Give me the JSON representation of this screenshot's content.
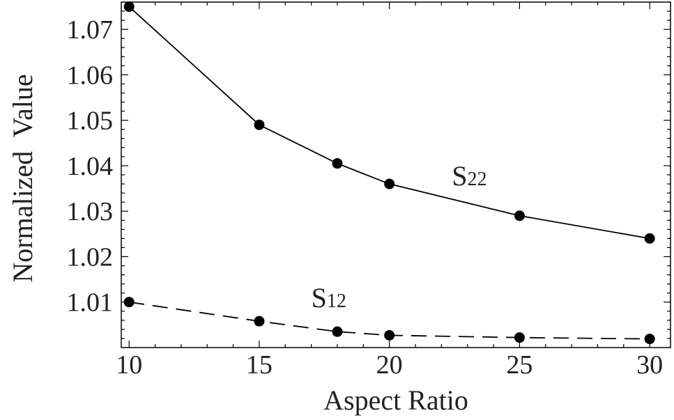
{
  "chart_data": {
    "type": "line",
    "xlabel": "Aspect Ratio",
    "ylabel": "Normalized  Value",
    "xlim": [
      9.7,
      30.8
    ],
    "ylim": [
      1.0,
      1.076
    ],
    "x_ticks": [
      10,
      15,
      20,
      25,
      30
    ],
    "x_tick_labels": [
      "10",
      "15",
      "20",
      "25",
      "30"
    ],
    "y_ticks": [
      1.01,
      1.02,
      1.03,
      1.04,
      1.05,
      1.06,
      1.07
    ],
    "y_tick_labels": [
      "1.01",
      "1.02",
      "1.03",
      "1.04",
      "1.05",
      "1.06",
      "1.07"
    ],
    "grid": false,
    "series": [
      {
        "label_main": "S",
        "label_sub": "22",
        "line_style": "solid",
        "color": "#000000",
        "x": [
          10,
          15,
          18,
          20,
          25,
          30
        ],
        "y": [
          1.075,
          1.049,
          1.0405,
          1.036,
          1.029,
          1.024
        ]
      },
      {
        "label_main": "S",
        "label_sub": "12",
        "line_style": "dashed",
        "color": "#000000",
        "x": [
          10,
          15,
          18,
          20,
          25,
          30
        ],
        "y": [
          1.01,
          1.0058,
          1.0035,
          1.0027,
          1.0022,
          1.0019
        ]
      }
    ]
  }
}
